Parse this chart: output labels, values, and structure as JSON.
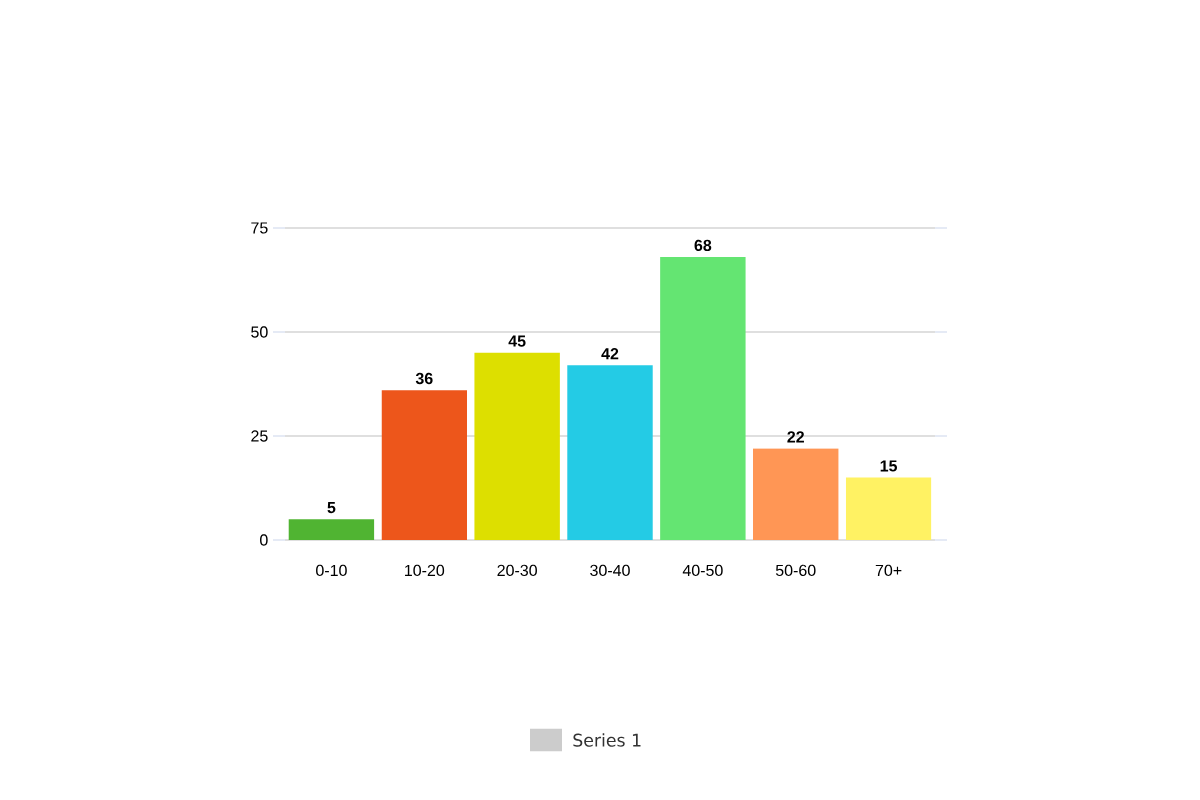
{
  "chart_data": {
    "type": "bar",
    "categories": [
      "0-10",
      "10-20",
      "20-30",
      "30-40",
      "40-50",
      "50-60",
      "70+"
    ],
    "series": [
      {
        "name": "Series 1",
        "color": "#cccccc",
        "colors": [
          "#50b432",
          "#ed561b",
          "#dddf00",
          "#24cbe5",
          "#64e572",
          "#ff9655",
          "#fff263"
        ],
        "values": [
          5,
          36,
          45,
          42,
          68,
          22,
          15
        ]
      }
    ],
    "ylim": [
      0,
      75
    ],
    "yticks": [
      0,
      25,
      50,
      75
    ],
    "grid": "y",
    "data_labels": true,
    "legend": "bottom"
  }
}
